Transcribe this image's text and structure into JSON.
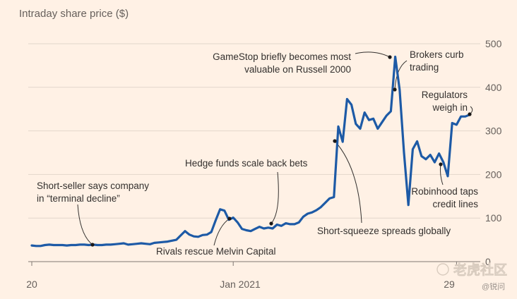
{
  "chart_data": {
    "type": "line",
    "title": "Intraday share price ($)",
    "xlabel": "",
    "ylabel": "",
    "ylim": [
      0,
      500
    ],
    "yticks": [
      0,
      100,
      200,
      300,
      400,
      500
    ],
    "xtick_labels": [
      "20",
      "Jan 2021",
      "29"
    ],
    "grid": true,
    "series": [
      {
        "name": "",
        "color": "#1D5AA6",
        "values": [
          37,
          36,
          36,
          38,
          39,
          38,
          38,
          38,
          37,
          38,
          38,
          39,
          39,
          38,
          39,
          38,
          38,
          39,
          39,
          40,
          41,
          42,
          39,
          40,
          41,
          42,
          41,
          40,
          43,
          44,
          45,
          46,
          48,
          50,
          60,
          70,
          62,
          58,
          57,
          61,
          62,
          68,
          95,
          120,
          117,
          96,
          101,
          90,
          75,
          72,
          70,
          75,
          80,
          76,
          78,
          76,
          85,
          82,
          88,
          86,
          86,
          90,
          103,
          110,
          113,
          118,
          125,
          135,
          145,
          148,
          310,
          275,
          373,
          360,
          316,
          305,
          342,
          325,
          328,
          305,
          320,
          335,
          345,
          470,
          395,
          250,
          130,
          258,
          276,
          242,
          235,
          245,
          228,
          248,
          228,
          196,
          318,
          314,
          333,
          333,
          337
        ]
      }
    ],
    "annotations": [
      {
        "lines": [
          "Short-seller says company",
          "in “terminal decline”"
        ],
        "point_index": 23
      },
      {
        "lines": [
          "Rivals rescue Melvin Capital"
        ],
        "point_index": 78
      },
      {
        "lines": [
          "Hedge funds scale back bets"
        ],
        "point_index": 95
      },
      {
        "lines": [
          "GameStop briefly becomes most",
          "valuable on Russell 2000"
        ],
        "point_index": 143
      },
      {
        "lines": [
          "Brokers curb",
          "trading"
        ],
        "point_index": 145
      },
      {
        "lines": [
          "Short-squeeze spreads globally"
        ],
        "point_index": 119
      },
      {
        "lines": [
          "Regulators",
          "weigh in"
        ],
        "point_index": 170
      },
      {
        "lines": [
          "Robinhood taps",
          "credit lines"
        ],
        "point_index": 160
      }
    ]
  },
  "watermark": {
    "brand": "老虎社区",
    "user": "@锐问"
  }
}
